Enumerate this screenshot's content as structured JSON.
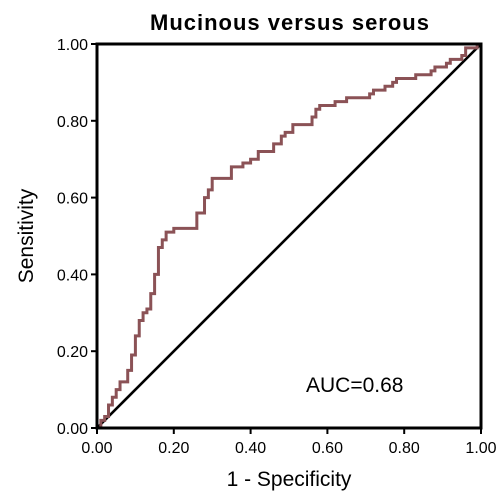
{
  "chart_data": {
    "type": "line",
    "title": "Mucinous versus serous",
    "xlabel": "1 - Specificity",
    "ylabel": "Sensitivity",
    "xlim": [
      0,
      1
    ],
    "ylim": [
      0,
      1
    ],
    "x_ticks": [
      "0.00",
      "0.20",
      "0.40",
      "0.60",
      "0.80",
      "1.00"
    ],
    "y_ticks": [
      "0.00",
      "0.20",
      "0.40",
      "0.60",
      "0.80",
      "1.00"
    ],
    "annotation": "AUC=0.68",
    "grid": false,
    "colors": {
      "roc": "#8b5256",
      "reference": "#000000",
      "axes": "#000000"
    },
    "series": [
      {
        "x": [
          0.0,
          0.01,
          0.01,
          0.02,
          0.02,
          0.03,
          0.03,
          0.04,
          0.04,
          0.05,
          0.05,
          0.06,
          0.06,
          0.08,
          0.08,
          0.09,
          0.09,
          0.1,
          0.1,
          0.11,
          0.11,
          0.12,
          0.12,
          0.13,
          0.13,
          0.14,
          0.14,
          0.15,
          0.15,
          0.16,
          0.16,
          0.17,
          0.17,
          0.18,
          0.18,
          0.2,
          0.2,
          0.26,
          0.26,
          0.28,
          0.28,
          0.29,
          0.29,
          0.3,
          0.3,
          0.35,
          0.35,
          0.38,
          0.38,
          0.4,
          0.4,
          0.42,
          0.42,
          0.46,
          0.46,
          0.48,
          0.48,
          0.49,
          0.49,
          0.51,
          0.51,
          0.56,
          0.56,
          0.57,
          0.57,
          0.58,
          0.58,
          0.62,
          0.62,
          0.65,
          0.65,
          0.71,
          0.71,
          0.72,
          0.72,
          0.75,
          0.75,
          0.77,
          0.77,
          0.78,
          0.78,
          0.83,
          0.83,
          0.87,
          0.87,
          0.88,
          0.88,
          0.91,
          0.91,
          0.92,
          0.92,
          0.95,
          0.95,
          0.96,
          0.96,
          0.99,
          0.99,
          1.0
        ],
        "y": [
          0.0,
          0.0,
          0.02,
          0.02,
          0.03,
          0.03,
          0.06,
          0.06,
          0.08,
          0.08,
          0.1,
          0.1,
          0.12,
          0.12,
          0.15,
          0.15,
          0.19,
          0.19,
          0.24,
          0.24,
          0.28,
          0.28,
          0.3,
          0.3,
          0.31,
          0.31,
          0.35,
          0.35,
          0.4,
          0.4,
          0.47,
          0.47,
          0.49,
          0.49,
          0.51,
          0.51,
          0.52,
          0.52,
          0.56,
          0.56,
          0.6,
          0.6,
          0.62,
          0.62,
          0.65,
          0.65,
          0.68,
          0.68,
          0.69,
          0.69,
          0.7,
          0.7,
          0.72,
          0.72,
          0.74,
          0.74,
          0.76,
          0.76,
          0.77,
          0.77,
          0.79,
          0.79,
          0.81,
          0.81,
          0.83,
          0.83,
          0.84,
          0.84,
          0.85,
          0.85,
          0.86,
          0.86,
          0.87,
          0.87,
          0.88,
          0.88,
          0.89,
          0.89,
          0.9,
          0.9,
          0.91,
          0.91,
          0.92,
          0.92,
          0.93,
          0.93,
          0.94,
          0.94,
          0.95,
          0.95,
          0.96,
          0.96,
          0.97,
          0.97,
          0.99,
          0.99,
          1.0,
          1.0
        ]
      },
      {
        "x": [
          0,
          1
        ],
        "y": [
          0,
          1
        ]
      }
    ]
  }
}
